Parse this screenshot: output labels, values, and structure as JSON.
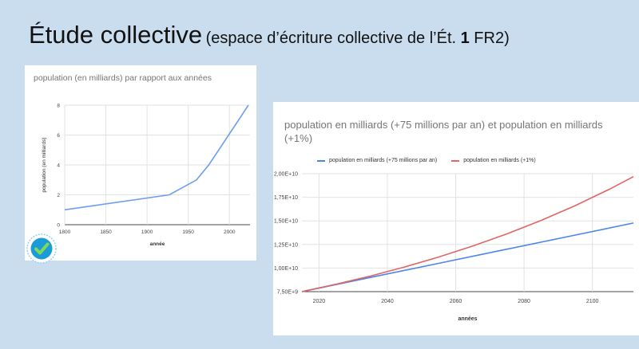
{
  "slide": {
    "title_main": "Étude collective",
    "title_paren_open": "(espace d’écriture collective de l’Ét. ",
    "title_number": "1",
    "title_paren_close": " FR2)",
    "background": "#c9ddee"
  },
  "badge": {
    "icon": "checkmark-badge-icon",
    "color": "#1b9bd7"
  },
  "chart_data": [
    {
      "type": "line",
      "title": "population (en milliards)  par rapport aux années",
      "xlabel": "année",
      "ylabel": "population (en milliards)",
      "xlim": [
        1800,
        2025
      ],
      "ylim": [
        0,
        8
      ],
      "x_ticks": [
        "1800",
        "1850",
        "1900",
        "1950",
        "2000"
      ],
      "y_ticks": [
        "0",
        "2",
        "4",
        "6",
        "8"
      ],
      "grid": true,
      "color": "#6d9eeb",
      "series": [
        {
          "x": [
            1800,
            1927,
            1960,
            1975,
            1987,
            1999,
            2011,
            2023
          ],
          "values": [
            1,
            2,
            3,
            4,
            5,
            6,
            7,
            8
          ]
        }
      ]
    },
    {
      "type": "line",
      "title": "population en milliards (+75 millions par an) et population en milliards (+1%)",
      "xlabel": "années",
      "ylabel": "",
      "xlim": [
        2015,
        2112
      ],
      "ylim": [
        7500000000.0,
        20000000000.0
      ],
      "x_ticks": [
        "2020",
        "2040",
        "2060",
        "2080",
        "2100"
      ],
      "y_ticks": [
        "7,50E+9",
        "1,00E+10",
        "1,25E+10",
        "1,50E+10",
        "1,75E+10",
        "2,00E+10"
      ],
      "grid": true,
      "legend_position": "top",
      "series": [
        {
          "name": "population en milliards (+75 millions par an)",
          "color": "#4a86e8",
          "x": [
            2015,
            2035,
            2055,
            2075,
            2095,
            2112
          ],
          "values": [
            7500000000.0,
            9000000000.0,
            10500000000.0,
            12000000000.0,
            13500000000.0,
            14775000000.0
          ]
        },
        {
          "name": "population en milliards (+1%)",
          "color": "#e06666",
          "x": [
            2015,
            2025,
            2035,
            2045,
            2055,
            2065,
            2075,
            2085,
            2095,
            2105,
            2112
          ],
          "values": [
            7500000000.0,
            8285000000.0,
            9151000000.0,
            10109000000.0,
            11166000000.0,
            12334000000.0,
            13625000000.0,
            15050000000.0,
            16625000000.0,
            18364000000.0,
            19688000000.0
          ]
        }
      ]
    }
  ]
}
